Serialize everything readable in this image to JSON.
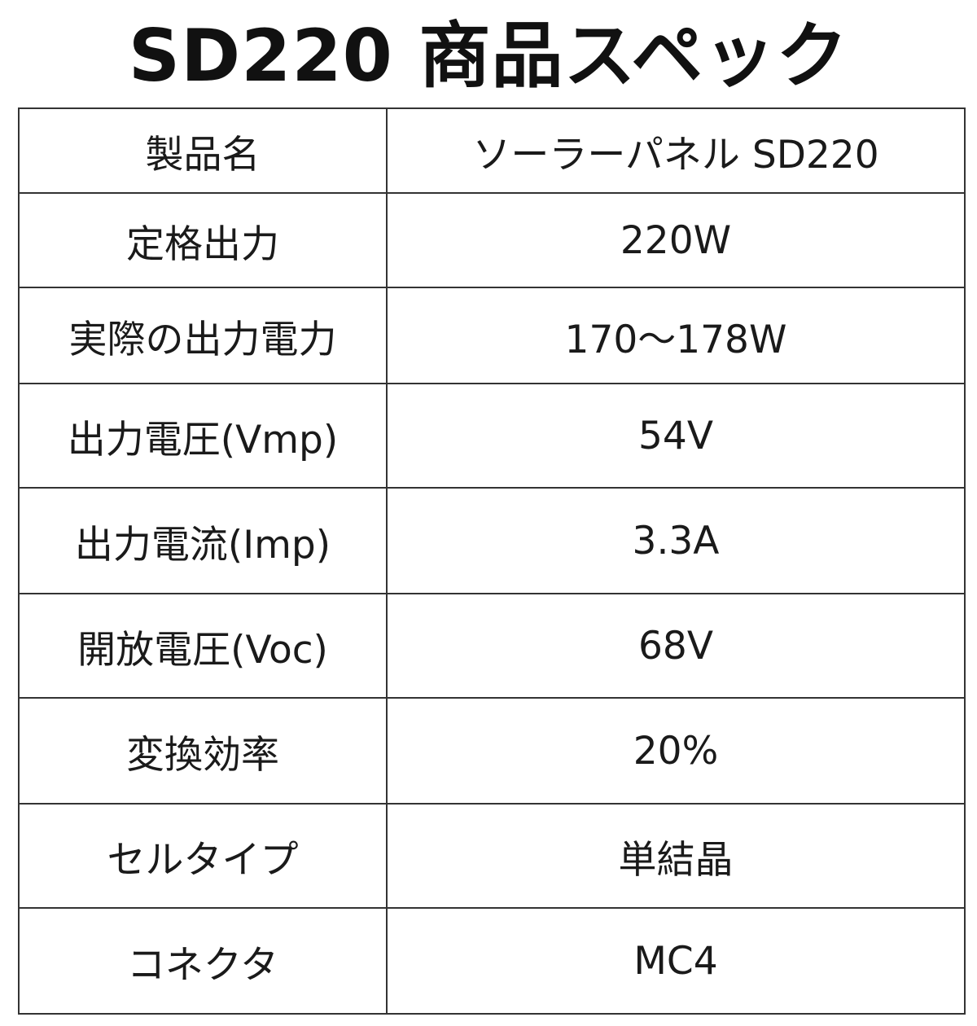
{
  "title": "SD220 商品スペック",
  "specs": [
    {
      "label": "製品名",
      "value": "ソーラーパネル SD220"
    },
    {
      "label": "定格出力",
      "value": "220W"
    },
    {
      "label": "実際の出力電力",
      "value": "170～178W"
    },
    {
      "label": "出力電圧(Vmp)",
      "value": "54V"
    },
    {
      "label": "出力電流(Imp)",
      "value": "3.3A"
    },
    {
      "label": "開放電圧(Voc)",
      "value": "68V"
    },
    {
      "label": "変換効率",
      "value": "20%"
    },
    {
      "label": "セルタイプ",
      "value": "単結晶"
    },
    {
      "label": "コネクタ",
      "value": "MC4"
    }
  ]
}
